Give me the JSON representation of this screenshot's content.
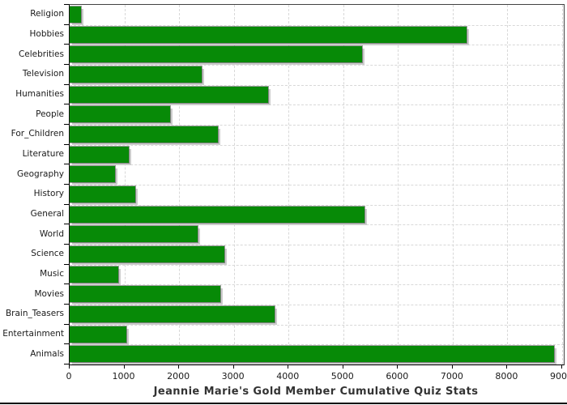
{
  "chart_data": {
    "type": "bar",
    "orientation": "horizontal",
    "title": "Jeannie Marie's Gold Member Cumulative Quiz Stats",
    "categories": [
      "Religion",
      "Hobbies",
      "Celebrities",
      "Television",
      "Humanities",
      "People",
      "For_Children",
      "Literature",
      "Geography",
      "History",
      "General",
      "World",
      "Science",
      "Music",
      "Movies",
      "Brain_Teasers",
      "Entertainment",
      "Animals"
    ],
    "values": [
      200,
      7250,
      5340,
      2420,
      3620,
      1840,
      2715,
      1075,
      830,
      1200,
      5395,
      2345,
      2830,
      890,
      2755,
      3740,
      1040,
      8850
    ],
    "x_ticks": [
      0,
      1000,
      2000,
      3000,
      4000,
      5000,
      6000,
      7000,
      8000,
      9000
    ],
    "xlim": [
      0,
      9030
    ],
    "xlabel": "",
    "ylabel": "",
    "grid": "dashed, vertical at each 1000 and horizontal at category boundaries",
    "legend": "none",
    "colors": {
      "bar": "#078a07",
      "bar_shadow": "#cccccc",
      "gridline": "#d8d8d8",
      "plot_border": "#434343",
      "axis": "#000000",
      "tick_text": "#1a1a1a",
      "title_text": "#333333",
      "background": "#ffffff"
    }
  }
}
